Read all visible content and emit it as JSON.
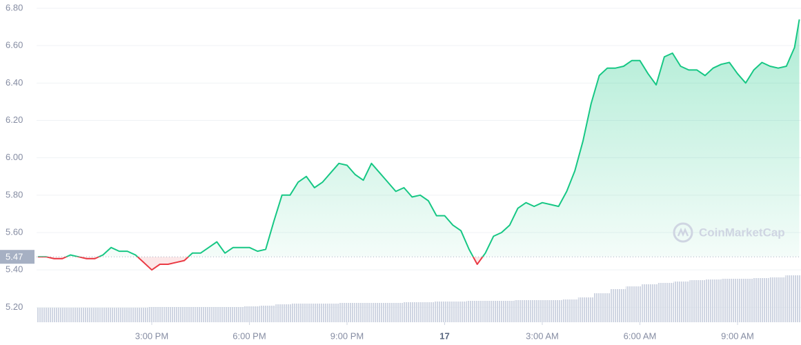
{
  "chart_data": {
    "type": "line",
    "x": [
      11.5,
      11.75,
      12,
      12.25,
      12.5,
      12.75,
      13,
      13.25,
      13.5,
      13.75,
      14,
      14.25,
      14.5,
      14.75,
      15,
      15.25,
      15.5,
      15.75,
      16,
      16.25,
      16.5,
      16.75,
      17,
      17.25,
      17.5,
      17.75,
      18,
      18.25,
      18.5,
      18.75,
      19,
      19.25,
      19.5,
      19.75,
      20,
      20.25,
      20.5,
      20.75,
      21,
      21.25,
      21.5,
      21.75,
      22,
      22.25,
      22.5,
      22.75,
      23,
      23.25,
      23.5,
      23.75,
      24,
      24.25,
      24.5,
      24.75,
      25,
      25.25,
      25.5,
      25.75,
      26,
      26.25,
      26.5,
      26.75,
      27,
      27.25,
      27.5,
      27.75,
      28,
      28.25,
      28.5,
      28.75,
      29,
      29.25,
      29.5,
      29.75,
      30,
      30.25,
      30.5,
      30.75,
      31,
      31.25,
      31.5,
      31.75,
      32,
      32.25,
      32.5,
      32.75,
      33,
      33.25,
      33.5,
      33.75,
      34,
      34.25,
      34.5,
      34.75,
      34.9
    ],
    "values": [
      5.47,
      5.47,
      5.46,
      5.46,
      5.48,
      5.47,
      5.46,
      5.46,
      5.48,
      5.52,
      5.5,
      5.5,
      5.48,
      5.44,
      5.4,
      5.43,
      5.43,
      5.44,
      5.45,
      5.49,
      5.49,
      5.52,
      5.55,
      5.49,
      5.52,
      5.52,
      5.52,
      5.5,
      5.51,
      5.66,
      5.8,
      5.8,
      5.87,
      5.9,
      5.84,
      5.87,
      5.92,
      5.97,
      5.96,
      5.91,
      5.88,
      5.97,
      5.92,
      5.87,
      5.82,
      5.84,
      5.79,
      5.8,
      5.77,
      5.69,
      5.69,
      5.64,
      5.61,
      5.51,
      5.43,
      5.49,
      5.58,
      5.6,
      5.64,
      5.73,
      5.76,
      5.74,
      5.76,
      5.75,
      5.74,
      5.82,
      5.93,
      6.09,
      6.29,
      6.44,
      6.48,
      6.48,
      6.49,
      6.52,
      6.52,
      6.45,
      6.39,
      6.54,
      6.56,
      6.49,
      6.47,
      6.47,
      6.44,
      6.48,
      6.5,
      6.51,
      6.45,
      6.4,
      6.47,
      6.51,
      6.49,
      6.48,
      6.49,
      6.59,
      6.74
    ],
    "xlim": [
      11.46,
      34.95
    ],
    "xticks": [
      {
        "value": 15,
        "label": "3:00 PM"
      },
      {
        "value": 18,
        "label": "6:00 PM"
      },
      {
        "value": 21,
        "label": "9:00 PM"
      },
      {
        "value": 24,
        "label": "17"
      },
      {
        "value": 27,
        "label": "3:00 AM"
      },
      {
        "value": 30,
        "label": "6:00 AM"
      },
      {
        "value": 33,
        "label": "9:00 AM"
      }
    ],
    "ylim": [
      5.12,
      6.8
    ],
    "yticks": [
      {
        "value": 5.2,
        "label": "5.20"
      },
      {
        "value": 5.4,
        "label": "5.40"
      },
      {
        "value": 5.6,
        "label": "5.60"
      },
      {
        "value": 5.8,
        "label": "5.80"
      },
      {
        "value": 6.0,
        "label": "6.00"
      },
      {
        "value": 6.2,
        "label": "6.20"
      },
      {
        "value": 6.4,
        "label": "6.40"
      },
      {
        "value": 6.6,
        "label": "6.60"
      },
      {
        "value": 6.8,
        "label": "6.80"
      }
    ],
    "grid": true,
    "baseline": 5.47,
    "up_color": "#16c784",
    "down_color": "#ea3943",
    "volume": {
      "values": [
        21,
        21,
        21,
        21,
        21,
        21,
        21,
        22,
        22,
        22,
        22,
        22,
        22,
        23,
        24,
        26,
        27,
        27,
        27,
        28,
        28,
        28,
        28,
        29,
        29,
        30,
        30,
        31,
        31,
        31,
        32,
        32,
        32,
        33,
        36,
        42,
        48,
        52,
        55,
        57,
        59,
        61,
        62,
        63,
        63,
        64,
        65,
        68
      ],
      "vlim": [
        0,
        100
      ],
      "color": "#cfd5e2"
    },
    "watermark": "CoinMarketCap"
  }
}
